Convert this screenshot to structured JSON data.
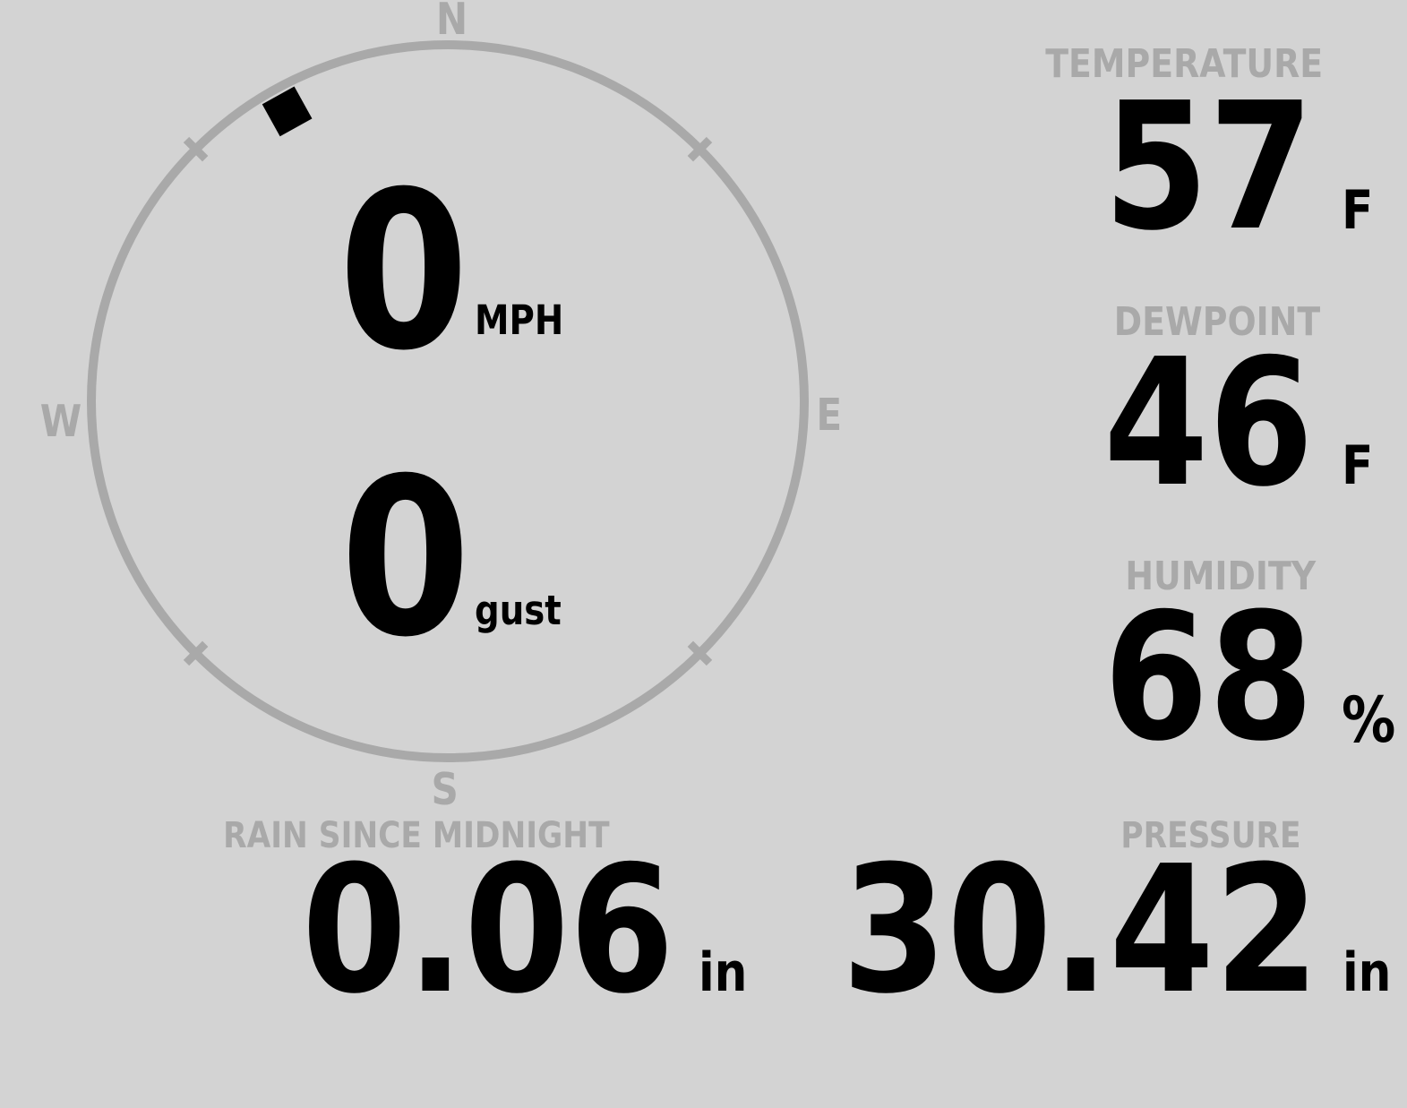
{
  "colors": {
    "background": "#d3d3d3",
    "muted": "#a9a9a9",
    "ink": "#000000"
  },
  "wind": {
    "speed": "0",
    "speed_unit": "MPH",
    "gust": "0",
    "gust_unit": "gust",
    "direction_degrees": 331,
    "cardinals": {
      "north": "N",
      "east": "E",
      "south": "S",
      "west": "W"
    }
  },
  "metrics": {
    "temperature": {
      "label": "TEMPERATURE",
      "value": "57",
      "unit": "F"
    },
    "dewpoint": {
      "label": "DEWPOINT",
      "value": "46",
      "unit": "F"
    },
    "humidity": {
      "label": "HUMIDITY",
      "value": "68",
      "unit": "%"
    },
    "rain_since_midnight": {
      "label": "RAIN SINCE MIDNIGHT",
      "value": "0.06",
      "unit": "in"
    },
    "pressure": {
      "label": "PRESSURE",
      "value": "30.42",
      "unit": "in"
    }
  }
}
